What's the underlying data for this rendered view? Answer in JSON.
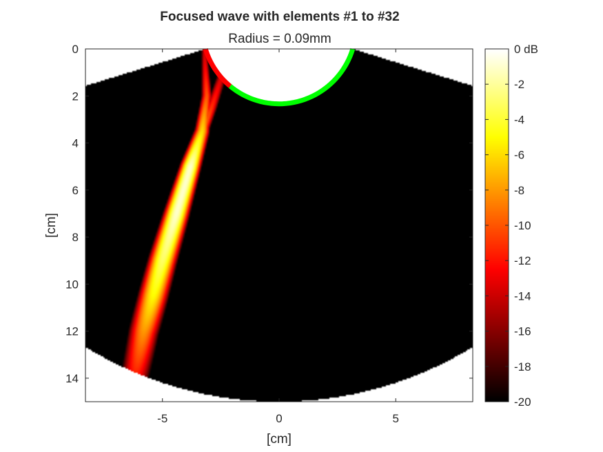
{
  "chart_data": {
    "type": "heatmap",
    "title": "Focused wave with elements #1 to #32",
    "subtitle": "Radius = 0.09mm",
    "xlabel": "[cm]",
    "ylabel": "[cm]",
    "xlim": [
      -8.3,
      8.3
    ],
    "ylim": [
      0,
      15
    ],
    "y_reversed": true,
    "xticks": [
      -5,
      0,
      5
    ],
    "yticks": [
      0,
      2,
      4,
      6,
      8,
      10,
      12,
      14
    ],
    "colormap": "hot",
    "clim": [
      -20,
      0
    ],
    "colorbar": {
      "ticks": [
        0,
        -2,
        -4,
        -6,
        -8,
        -10,
        -12,
        -14,
        -16,
        -18,
        -20
      ],
      "tick_labels": [
        "0 dB",
        "-2",
        "-4",
        "-6",
        "-8",
        "-10",
        "-12",
        "-14",
        "-16",
        "-18",
        "-20"
      ]
    },
    "field_sector": {
      "probe_radius_cm": 3.3,
      "probe_half_angle_deg": 73,
      "max_depth_cm": 15,
      "background_db": -20
    },
    "transducer": {
      "active_elements": "#1 to #32",
      "active_color": "#ff0000",
      "inactive_color": "#00ff00"
    },
    "beam": {
      "centerline": [
        {
          "x": -3.2,
          "y": 0.1,
          "db": -14
        },
        {
          "x": -3.1,
          "y": 2.0,
          "db": -10
        },
        {
          "x": -3.3,
          "y": 3.5,
          "db": -6
        },
        {
          "x": -3.8,
          "y": 5.0,
          "db": -1
        },
        {
          "x": -4.4,
          "y": 7.0,
          "db": -1
        },
        {
          "x": -5.0,
          "y": 9.0,
          "db": -3
        },
        {
          "x": -5.4,
          "y": 10.5,
          "db": -5
        },
        {
          "x": -5.8,
          "y": 12.0,
          "db": -8
        },
        {
          "x": -6.2,
          "y": 14.0,
          "db": -12
        }
      ],
      "side_lobe": [
        {
          "x": -2.4,
          "y": 1.0,
          "db": -14
        },
        {
          "x": -2.9,
          "y": 2.5,
          "db": -11
        },
        {
          "x": -3.4,
          "y": 3.8,
          "db": -8
        }
      ]
    }
  }
}
